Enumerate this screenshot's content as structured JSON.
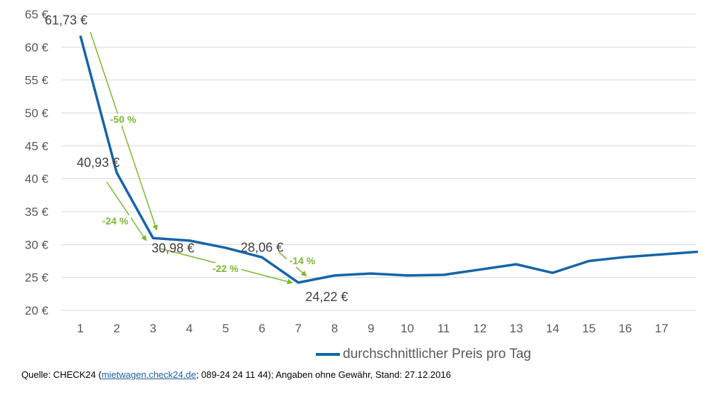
{
  "chart_data": {
    "type": "line",
    "title": "",
    "xlabel": "",
    "ylabel": "",
    "x": [
      1,
      2,
      3,
      4,
      5,
      6,
      7,
      8,
      9,
      10,
      11,
      12,
      13,
      14,
      15,
      16,
      17,
      18
    ],
    "x_tick_labels": [
      "1",
      "2",
      "3",
      "4",
      "5",
      "6",
      "7",
      "8",
      "9",
      "10",
      "11",
      "12",
      "13",
      "14",
      "15",
      "16",
      "17"
    ],
    "y_tick_labels": [
      "20 €",
      "25 €",
      "30 €",
      "35 €",
      "40 €",
      "45 €",
      "50 €",
      "55 €",
      "60 €",
      "65 €"
    ],
    "ylim": [
      20,
      65
    ],
    "grid": true,
    "legend_position": "bottom",
    "series": [
      {
        "name": "durchschnittlicher Preis pro Tag",
        "color": "#1565a7",
        "values": [
          61.73,
          40.93,
          30.98,
          30.6,
          29.5,
          28.06,
          24.22,
          25.3,
          25.6,
          25.3,
          25.4,
          26.2,
          27.0,
          25.7,
          27.5,
          28.1,
          28.5,
          28.9
        ]
      }
    ],
    "data_labels": [
      {
        "x": 1,
        "text": "61,73 €"
      },
      {
        "x": 2,
        "text": "40,93 €"
      },
      {
        "x": 3,
        "text": "30,98 €"
      },
      {
        "x": 6,
        "text": "28,06 €"
      },
      {
        "x": 7,
        "text": "24,22 €"
      }
    ],
    "annotations": [
      {
        "from": 1,
        "to": 3,
        "text": "-50 %"
      },
      {
        "from": 2,
        "to": 3,
        "text": "-24 %"
      },
      {
        "from": 3,
        "to": 7,
        "text": "-22 %"
      },
      {
        "from": 6,
        "to": 7,
        "text": "-14 %"
      }
    ],
    "annotation_color": "#7cb82f"
  },
  "source": {
    "prefix": "Quelle: CHECK24 (",
    "link": "mietwagen.check24.de",
    "suffix": "; 089-24 24 11 44); Angaben ohne Gewähr, Stand: 27.12.2016"
  }
}
